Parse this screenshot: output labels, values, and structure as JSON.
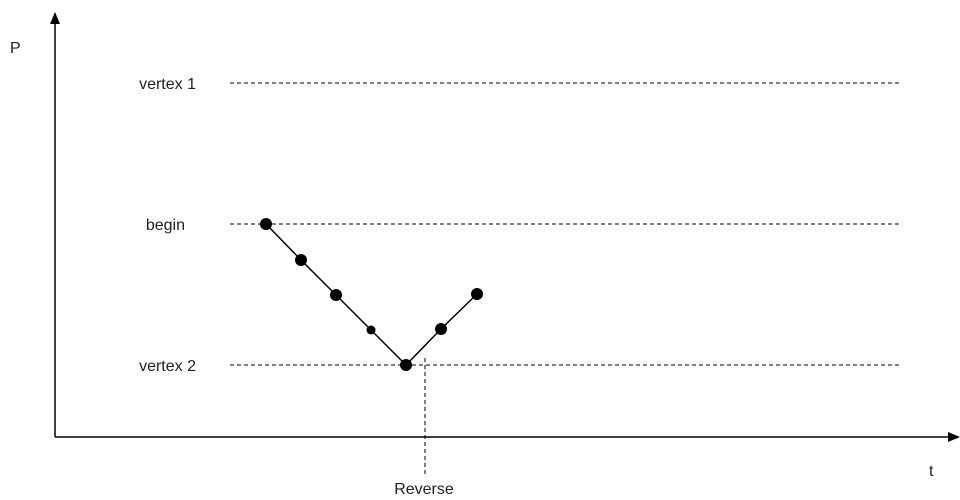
{
  "axes": {
    "y_label": "P",
    "x_label": "t"
  },
  "levels": {
    "vertex1": "vertex 1",
    "begin": "begin",
    "vertex2": "vertex 2"
  },
  "marker": {
    "reverse": "Reverse"
  },
  "colors": {
    "line": "#000000",
    "text": "#222222",
    "background": "#ffffff"
  },
  "point_sizes": [
    "large",
    "large",
    "large",
    "small",
    "large",
    "large",
    "large"
  ]
}
